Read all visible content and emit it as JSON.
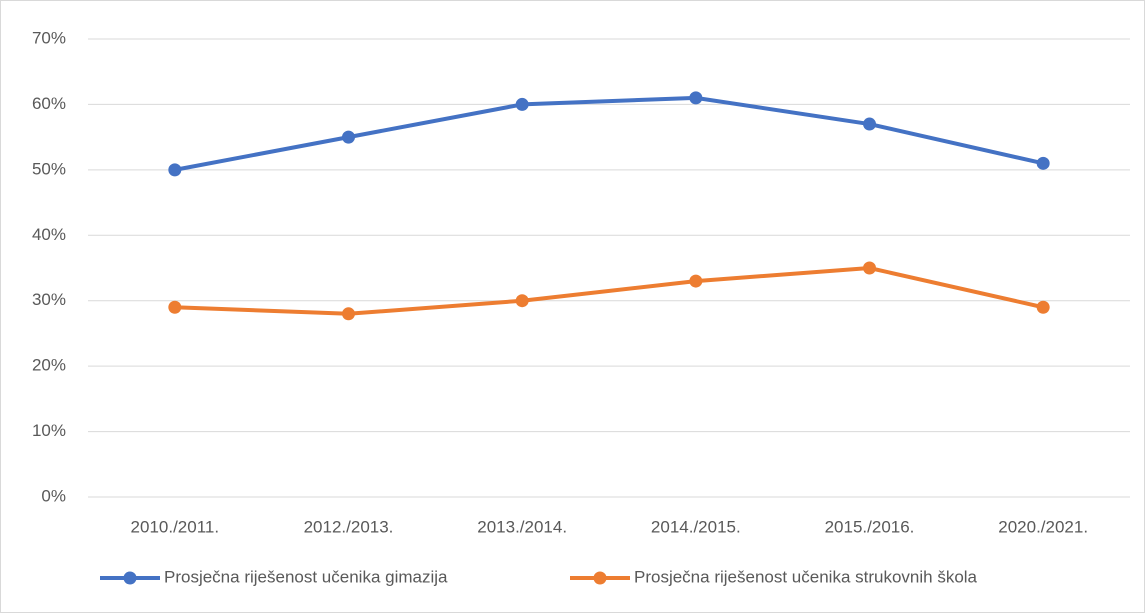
{
  "chart_data": {
    "type": "line",
    "categories": [
      "2010./2011.",
      "2012./2013.",
      "2013./2014.",
      "2014./2015.",
      "2015./2016.",
      "2020./2021."
    ],
    "series": [
      {
        "name": "Prosječna riješenost učenika gimazija",
        "color": "#4472c4",
        "values": [
          50,
          55,
          60,
          61,
          57,
          51
        ]
      },
      {
        "name": "Prosječna riješenost učenika strukovnih škola",
        "color": "#ed7d31",
        "values": [
          29,
          28,
          30,
          33,
          35,
          29
        ]
      }
    ],
    "ylim": [
      0,
      70
    ],
    "yticks": [
      {
        "value": 0,
        "label": "0%"
      },
      {
        "value": 10,
        "label": "10%"
      },
      {
        "value": 20,
        "label": "20%"
      },
      {
        "value": 30,
        "label": "30%"
      },
      {
        "value": 40,
        "label": "40%"
      },
      {
        "value": 50,
        "label": "50%"
      },
      {
        "value": 60,
        "label": "60%"
      },
      {
        "value": 70,
        "label": "70%"
      }
    ],
    "grid": true,
    "legend": "bottom"
  }
}
